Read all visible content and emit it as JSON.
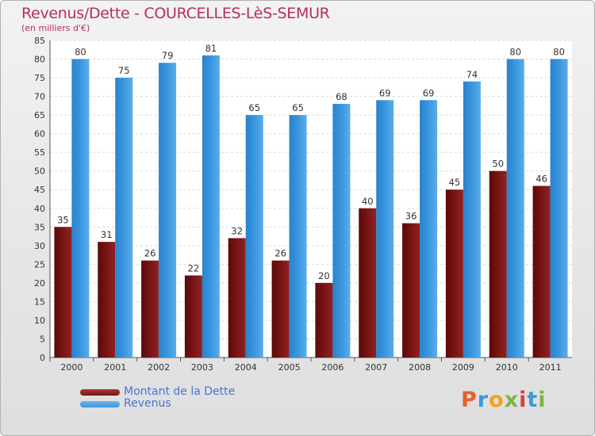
{
  "title": "Revenus/Dette - COURCELLES-LèS-SEMUR",
  "subtitle": "(en milliers d'€)",
  "logo": {
    "letters": [
      "P",
      "r",
      "o",
      "x",
      "i",
      "t",
      "i"
    ],
    "colors": [
      "#e8602b",
      "#3a9ad9",
      "#f2a21c",
      "#7ab648",
      "#d8413b",
      "#3a9ad9",
      "#7ab648"
    ]
  },
  "colors": {
    "dette": "#7a1414",
    "revenus": "#3a96e0",
    "title": "#b5305a",
    "legend_text": "#4a74d1"
  },
  "chart_data": {
    "type": "bar",
    "title": "Revenus/Dette - COURCELLES-LèS-SEMUR",
    "subtitle": "(en milliers d'€)",
    "categories": [
      "2000",
      "2001",
      "2002",
      "2003",
      "2004",
      "2005",
      "2006",
      "2007",
      "2008",
      "2009",
      "2010",
      "2011"
    ],
    "series": [
      {
        "name": "Montant de la Dette",
        "values": [
          35,
          31,
          26,
          22,
          32,
          26,
          20,
          40,
          36,
          45,
          50,
          46
        ]
      },
      {
        "name": "Revenus",
        "values": [
          80,
          75,
          79,
          81,
          65,
          65,
          68,
          69,
          69,
          74,
          80,
          80
        ]
      }
    ],
    "ylim": [
      0,
      85
    ],
    "yticks": [
      0,
      5,
      10,
      15,
      20,
      25,
      30,
      35,
      40,
      45,
      50,
      55,
      60,
      65,
      70,
      75,
      80,
      85
    ],
    "grid": true,
    "legend_position": "bottom-left"
  }
}
